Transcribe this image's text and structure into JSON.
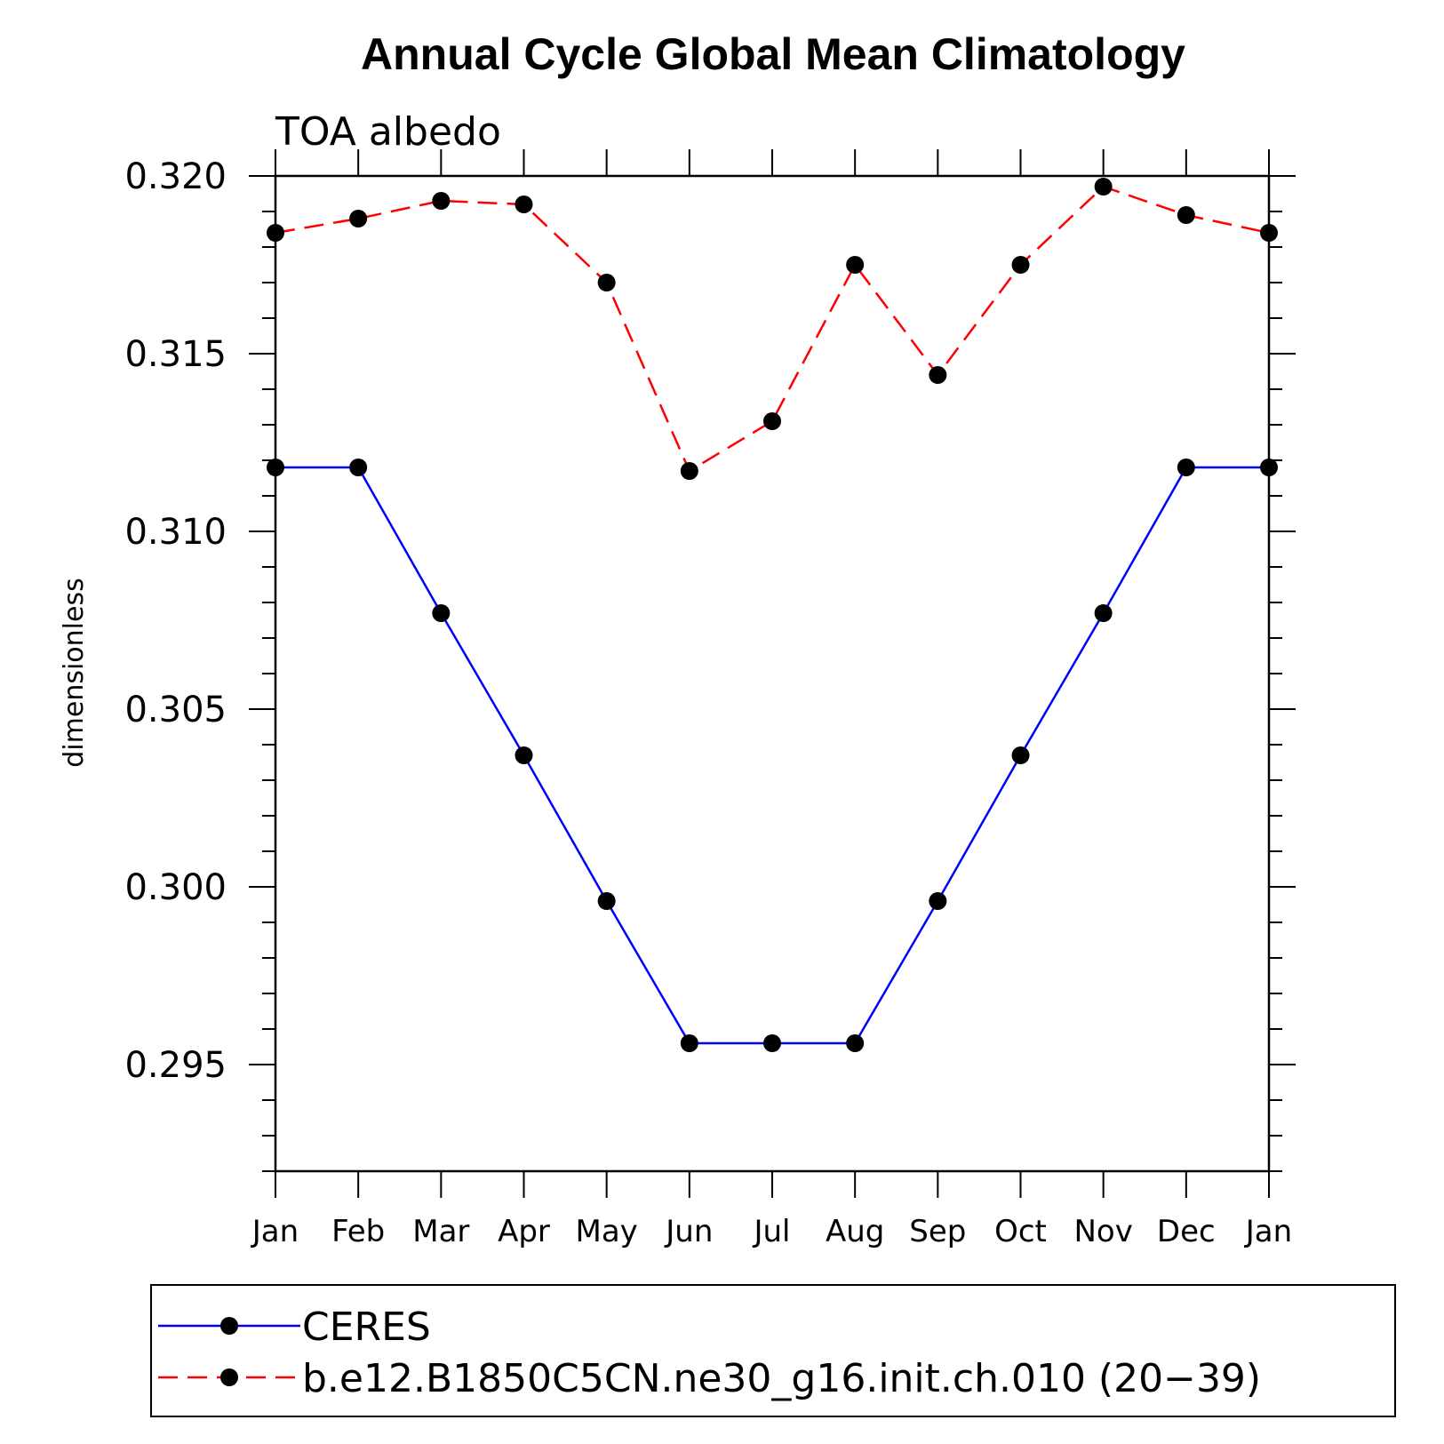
{
  "chart_data": {
    "type": "line",
    "title": "Annual Cycle Global Mean Climatology",
    "subtitle": "TOA albedo",
    "xlabel": "",
    "ylabel": "dimensionless",
    "categories": [
      "Jan",
      "Feb",
      "Mar",
      "Apr",
      "May",
      "Jun",
      "Jul",
      "Aug",
      "Sep",
      "Oct",
      "Nov",
      "Dec",
      "Jan"
    ],
    "ylim": [
      0.292,
      0.32
    ],
    "yticks": [
      "0.295",
      "0.300",
      "0.305",
      "0.310",
      "0.315",
      "0.320"
    ],
    "grid": false,
    "legend_position": "bottom",
    "series": [
      {
        "name": "CERES",
        "color": "#0000ff",
        "style": "solid",
        "marker": "circle",
        "values": [
          0.3118,
          0.3118,
          0.3077,
          0.3037,
          0.2996,
          0.2956,
          0.2956,
          0.2956,
          0.2996,
          0.3037,
          0.3077,
          0.3118,
          0.3118
        ]
      },
      {
        "name": "b.e12.B1850C5CN.ne30_g16.init.ch.010 (20−39)",
        "color": "#ff0000",
        "style": "dashed",
        "marker": "circle",
        "values": [
          0.3184,
          0.3188,
          0.3193,
          0.3192,
          0.317,
          0.3117,
          0.3131,
          0.3175,
          0.3144,
          0.3175,
          0.3197,
          0.3189,
          0.3184
        ]
      }
    ]
  }
}
